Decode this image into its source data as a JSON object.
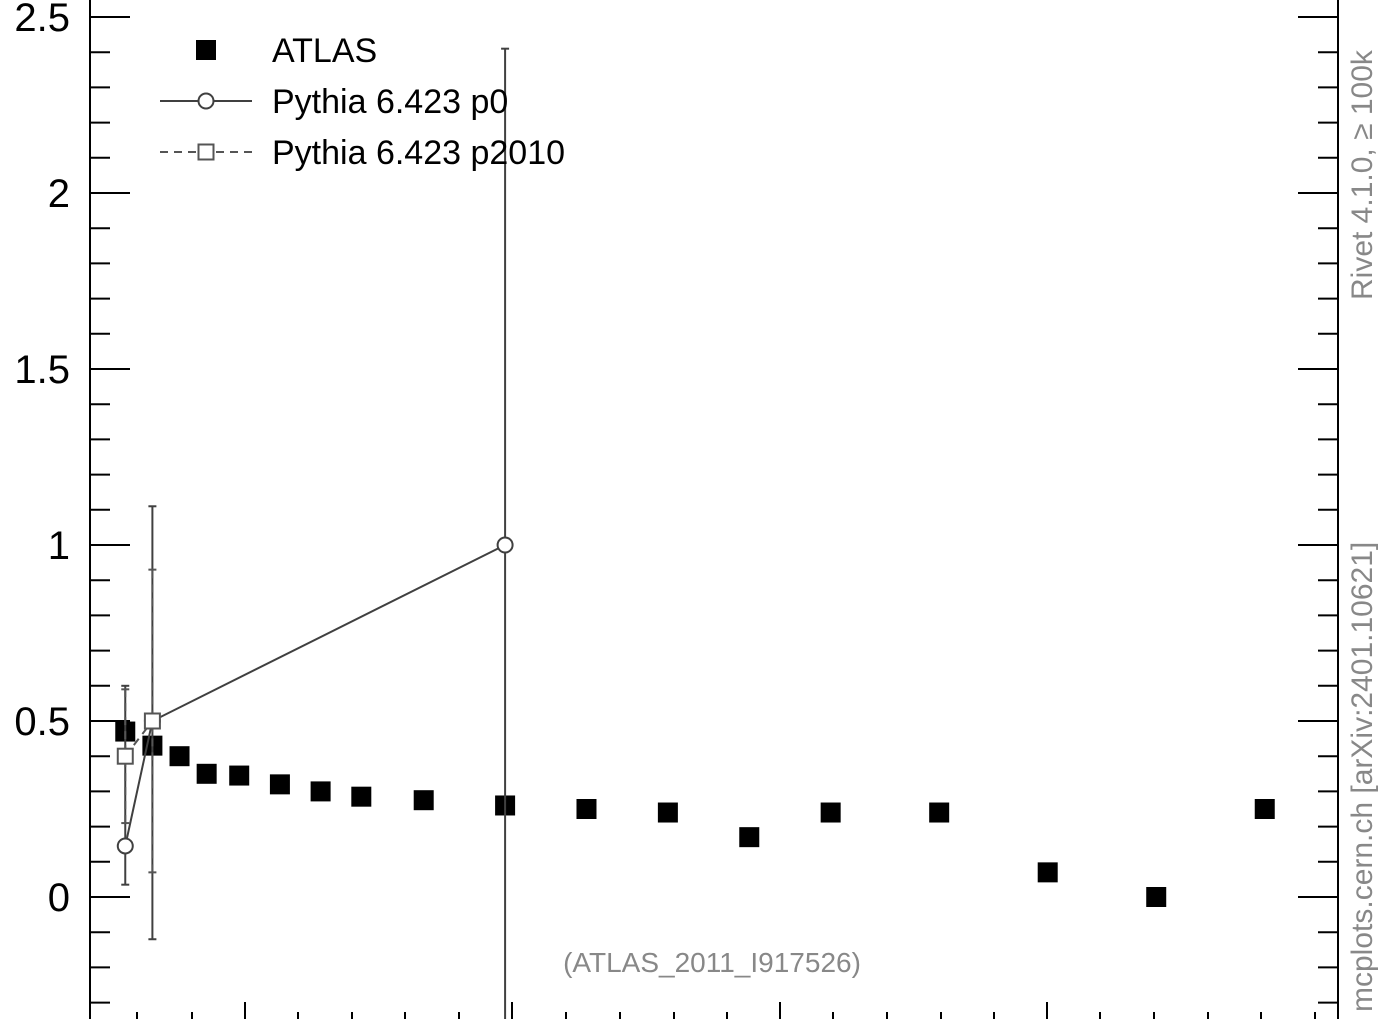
{
  "chart_data": {
    "type": "scatter",
    "title": "",
    "xlabel": "",
    "ylabel": "",
    "xlim": [
      0,
      4.6
    ],
    "ylim": [
      -0.3,
      2.55
    ],
    "yticks": [
      {
        "value": 0,
        "label": "0"
      },
      {
        "value": 0.5,
        "label": "0.5"
      },
      {
        "value": 1,
        "label": "1"
      },
      {
        "value": 1.5,
        "label": "1.5"
      },
      {
        "value": 2,
        "label": "2"
      },
      {
        "value": 2.5,
        "label": "2.5"
      }
    ],
    "grid": false,
    "legend_position": "top-left",
    "series": [
      {
        "name": "ATLAS",
        "marker": "filled-square",
        "line": "none",
        "color": "#000000",
        "points": [
          {
            "x": 0.13,
            "y": 0.47
          },
          {
            "x": 0.23,
            "y": 0.43
          },
          {
            "x": 0.33,
            "y": 0.4
          },
          {
            "x": 0.43,
            "y": 0.35
          },
          {
            "x": 0.55,
            "y": 0.345
          },
          {
            "x": 0.7,
            "y": 0.32
          },
          {
            "x": 0.85,
            "y": 0.3
          },
          {
            "x": 1.0,
            "y": 0.285
          },
          {
            "x": 1.23,
            "y": 0.275
          },
          {
            "x": 1.53,
            "y": 0.26
          },
          {
            "x": 1.83,
            "y": 0.25
          },
          {
            "x": 2.13,
            "y": 0.24
          },
          {
            "x": 2.43,
            "y": 0.17
          },
          {
            "x": 2.73,
            "y": 0.24
          },
          {
            "x": 3.13,
            "y": 0.24
          },
          {
            "x": 3.53,
            "y": 0.07
          },
          {
            "x": 3.93,
            "y": 0.0
          },
          {
            "x": 4.33,
            "y": 0.25
          }
        ]
      },
      {
        "name": "Pythia 6.423 p0",
        "marker": "open-circle",
        "line": "solid",
        "color": "#404040",
        "points": [
          {
            "x": 0.13,
            "y": 0.145,
            "err_low": 0.035,
            "err_high": 0.6
          },
          {
            "x": 0.23,
            "y": 0.5,
            "err_low": -0.12,
            "err_high": 1.11
          },
          {
            "x": 1.53,
            "y": 1.0,
            "err_low": -0.4,
            "err_high": 2.41
          }
        ]
      },
      {
        "name": "Pythia 6.423 p2010",
        "marker": "open-square",
        "line": "dashed",
        "color": "#555555",
        "points": [
          {
            "x": 0.13,
            "y": 0.4,
            "err_low": 0.21,
            "err_high": 0.59
          },
          {
            "x": 0.23,
            "y": 0.5,
            "err_low": 0.07,
            "err_high": 0.93
          }
        ]
      }
    ],
    "side_labels": {
      "rivet": "Rivet 4.1.0, ≥ 100k",
      "mcplots": "mcplots.cern.ch [arXiv:2401.10621]"
    },
    "annotation": "(ATLAS_2011_I917526)"
  }
}
